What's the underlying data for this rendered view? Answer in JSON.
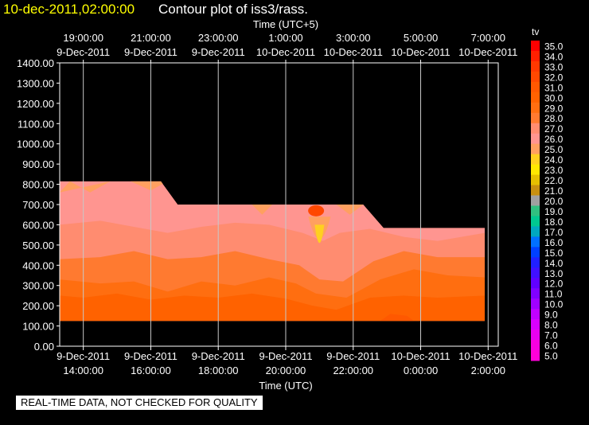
{
  "header": {
    "date_label": "10-dec-2011,02:00:00",
    "title": "Contour plot of iss3/rass."
  },
  "footer": {
    "note": "REAL-TIME DATA, NOT CHECKED FOR QUALITY"
  },
  "chart_data": {
    "type": "heatmap",
    "title": "Contour plot of iss3/rass.",
    "top_axis_label": "Time (UTC+5)",
    "top_ticks": [
      {
        "time": "19:00:00",
        "date": "9-Dec-2011"
      },
      {
        "time": "21:00:00",
        "date": "9-Dec-2011"
      },
      {
        "time": "23:00:00",
        "date": "9-Dec-2011"
      },
      {
        "time": "1:00:00",
        "date": "10-Dec-2011"
      },
      {
        "time": "3:00:00",
        "date": "10-Dec-2011"
      },
      {
        "time": "5:00:00",
        "date": "10-Dec-2011"
      },
      {
        "time": "7:00:00",
        "date": "10-Dec-2011"
      }
    ],
    "xlabel": "Time (UTC)",
    "x_ticks": [
      {
        "date": "9-Dec-2011",
        "time": "14:00:00"
      },
      {
        "date": "9-Dec-2011",
        "time": "16:00:00"
      },
      {
        "date": "9-Dec-2011",
        "time": "18:00:00"
      },
      {
        "date": "9-Dec-2011",
        "time": "20:00:00"
      },
      {
        "date": "9-Dec-2011",
        "time": "22:00:00"
      },
      {
        "date": "10-Dec-2011",
        "time": "0:00:00"
      },
      {
        "date": "10-Dec-2011",
        "time": "2:00:00"
      }
    ],
    "xlim_hours": [
      13.3,
      26.3
    ],
    "x_tick_hours": [
      14,
      16,
      18,
      20,
      22,
      24,
      26
    ],
    "ylim": [
      0,
      1400
    ],
    "y_ticks": [
      "0.00",
      "100.00",
      "200.00",
      "300.00",
      "400.00",
      "500.00",
      "600.00",
      "700.00",
      "800.00",
      "900.00",
      "1000.00",
      "1100.00",
      "1200.00",
      "1300.00",
      "1400.00"
    ],
    "grid": true,
    "data_region": {
      "bottom": 125,
      "top_profile": [
        {
          "hour": 13.3,
          "top": 815
        },
        {
          "hour": 16.3,
          "top": 815
        },
        {
          "hour": 16.8,
          "top": 700
        },
        {
          "hour": 22.3,
          "top": 700
        },
        {
          "hour": 22.9,
          "top": 585
        },
        {
          "hour": 25.9,
          "top": 585
        }
      ]
    },
    "contour_levels": [
      {
        "hour_fraction_layers": "bottom-to-top",
        "value_tv": 29.5,
        "upper": [
          [
            13.3,
            250
          ],
          [
            14,
            240
          ],
          [
            15,
            260
          ],
          [
            16,
            230
          ],
          [
            17,
            250
          ],
          [
            18,
            240
          ],
          [
            19,
            260
          ],
          [
            20,
            235
          ],
          [
            20.8,
            200
          ],
          [
            21.5,
            180
          ],
          [
            22.5,
            240
          ],
          [
            23.5,
            250
          ],
          [
            24.5,
            240
          ],
          [
            25.9,
            250
          ]
        ]
      },
      {
        "value_tv": 28.5,
        "upper": [
          [
            13.3,
            330
          ],
          [
            14.5,
            310
          ],
          [
            15.5,
            320
          ],
          [
            16.5,
            270
          ],
          [
            17.5,
            320
          ],
          [
            18.5,
            300
          ],
          [
            19.5,
            340
          ],
          [
            20.3,
            310
          ],
          [
            20.9,
            260
          ],
          [
            21.8,
            240
          ],
          [
            22.8,
            330
          ],
          [
            23.8,
            380
          ],
          [
            24.8,
            350
          ],
          [
            25.9,
            340
          ]
        ]
      },
      {
        "value_tv": 27.5,
        "upper": [
          [
            13.3,
            430
          ],
          [
            14.5,
            440
          ],
          [
            15.5,
            470
          ],
          [
            16.5,
            430
          ],
          [
            17.5,
            440
          ],
          [
            18.5,
            470
          ],
          [
            19.5,
            430
          ],
          [
            20.4,
            400
          ],
          [
            21.0,
            330
          ],
          [
            21.7,
            320
          ],
          [
            22.6,
            420
          ],
          [
            23.5,
            470
          ],
          [
            24.5,
            440
          ],
          [
            25.9,
            440
          ]
        ]
      },
      {
        "value_tv": 26.5,
        "upper": [
          [
            13.3,
            600
          ],
          [
            14.5,
            620
          ],
          [
            15.5,
            590
          ],
          [
            16.5,
            560
          ],
          [
            17.5,
            590
          ],
          [
            18.5,
            610
          ],
          [
            19.5,
            600
          ],
          [
            20.5,
            560
          ],
          [
            21.1,
            520
          ],
          [
            21.6,
            560
          ],
          [
            22.5,
            580
          ],
          [
            23.5,
            540
          ],
          [
            24.5,
            520
          ],
          [
            25.9,
            560
          ]
        ]
      }
    ],
    "hotspots": [
      {
        "hour": 20.9,
        "height": 685,
        "value_tv": 32.0
      },
      {
        "hour": 21.0,
        "height": 510,
        "value_tv": 24.0
      }
    ]
  },
  "colorbar": {
    "label": "tv",
    "levels": [
      {
        "value": "35.0",
        "color": "#ff0000"
      },
      {
        "value": "34.0",
        "color": "#ff2000"
      },
      {
        "value": "33.0",
        "color": "#ff3800"
      },
      {
        "value": "32.0",
        "color": "#ff4800"
      },
      {
        "value": "31.0",
        "color": "#ff5800"
      },
      {
        "value": "30.0",
        "color": "#ff6200"
      },
      {
        "value": "29.0",
        "color": "#ff6e10"
      },
      {
        "value": "28.0",
        "color": "#ff7a30"
      },
      {
        "value": "27.0",
        "color": "#ff8c70"
      },
      {
        "value": "26.0",
        "color": "#ff9590"
      },
      {
        "value": "25.0",
        "color": "#ffa060"
      },
      {
        "value": "24.0",
        "color": "#ffd020"
      },
      {
        "value": "23.0",
        "color": "#ffe800"
      },
      {
        "value": "22.0",
        "color": "#e6c000"
      },
      {
        "value": "21.0",
        "color": "#c89010"
      },
      {
        "value": "20.0",
        "color": "#a0a0a0"
      },
      {
        "value": "19.0",
        "color": "#30c080"
      },
      {
        "value": "18.0",
        "color": "#00c890"
      },
      {
        "value": "17.0",
        "color": "#00a8c0"
      },
      {
        "value": "16.0",
        "color": "#0070ff"
      },
      {
        "value": "15.0",
        "color": "#0040ff"
      },
      {
        "value": "14.0",
        "color": "#2020ff"
      },
      {
        "value": "13.0",
        "color": "#4010ff"
      },
      {
        "value": "12.0",
        "color": "#6000ff"
      },
      {
        "value": "11.0",
        "color": "#8000ff"
      },
      {
        "value": "10.0",
        "color": "#a000ff"
      },
      {
        "value": "9.0",
        "color": "#c000ff"
      },
      {
        "value": "8.0",
        "color": "#d800ff"
      },
      {
        "value": "7.0",
        "color": "#ea00f0"
      },
      {
        "value": "6.0",
        "color": "#f800e0"
      },
      {
        "value": "5.0",
        "color": "#ff00d8"
      }
    ]
  }
}
